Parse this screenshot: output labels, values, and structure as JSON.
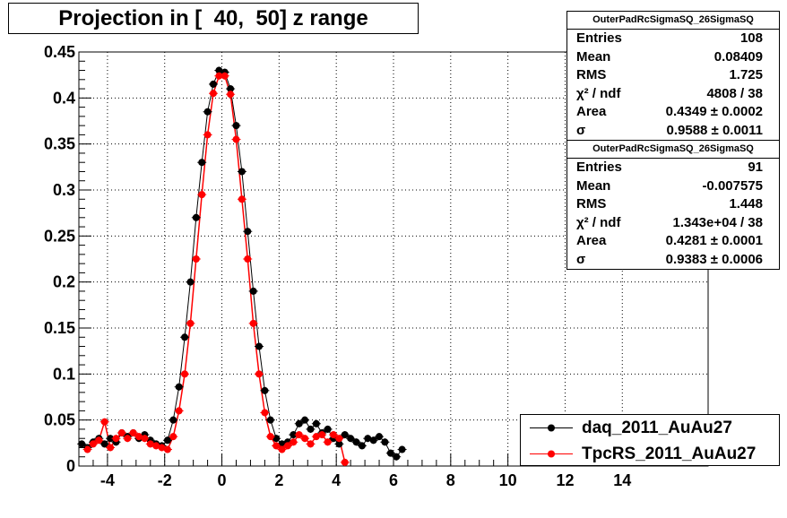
{
  "title": "Projection in [  40,  50] z range",
  "stats_boxes": [
    {
      "name": "OuterPadRcSigmaSQ_26SigmaSQ",
      "rows": [
        {
          "label": "Entries",
          "value": "108"
        },
        {
          "label": "Mean",
          "value": "0.08409"
        },
        {
          "label": "RMS",
          "value": "1.725"
        },
        {
          "label": "χ² / ndf",
          "value": "4808 / 38"
        },
        {
          "label": "Area",
          "value": "0.4349 ± 0.0002"
        },
        {
          "label": "σ",
          "value": "0.9588 ± 0.0011"
        }
      ]
    },
    {
      "name": "OuterPadRcSigmaSQ_26SigmaSQ",
      "rows": [
        {
          "label": "Entries",
          "value": "91"
        },
        {
          "label": "Mean",
          "value": "-0.007575"
        },
        {
          "label": "RMS",
          "value": "1.448"
        },
        {
          "label": "χ² / ndf",
          "value": "1.343e+04 / 38"
        },
        {
          "label": "Area",
          "value": "0.4281 ± 0.0001"
        },
        {
          "label": "σ",
          "value": "0.9383 ± 0.0006"
        }
      ]
    }
  ],
  "chart_data": {
    "type": "scatter",
    "title": "Projection in [  40,  50] z range",
    "xlim": [
      -5,
      17
    ],
    "ylim": [
      0,
      0.45
    ],
    "xticks": [
      -4,
      -2,
      0,
      2,
      4,
      6,
      8,
      10,
      12,
      14
    ],
    "yticks": [
      0,
      0.05,
      0.1,
      0.15,
      0.2,
      0.25,
      0.3,
      0.35,
      0.4,
      0.45
    ],
    "ytick_labels": [
      "0",
      "0.05",
      "0.1",
      "0.15",
      "0.2",
      "0.25",
      "0.3",
      "0.35",
      "0.4",
      "0.45"
    ],
    "grid": true,
    "legend": "bottom-right",
    "series": [
      {
        "name": "daq_2011_AuAu27",
        "color": "#000000",
        "x": [
          -4.9,
          -4.7,
          -4.5,
          -4.3,
          -4.1,
          -3.9,
          -3.7,
          -3.5,
          -3.3,
          -3.1,
          -2.9,
          -2.7,
          -2.5,
          -2.3,
          -2.1,
          -1.9,
          -1.7,
          -1.5,
          -1.3,
          -1.1,
          -0.9,
          -0.7,
          -0.5,
          -0.3,
          -0.1,
          0.1,
          0.3,
          0.5,
          0.7,
          0.9,
          1.1,
          1.3,
          1.5,
          1.7,
          1.9,
          2.1,
          2.3,
          2.5,
          2.7,
          2.9,
          3.1,
          3.3,
          3.5,
          3.7,
          3.9,
          4.1,
          4.3,
          4.5,
          4.7,
          4.9,
          5.1,
          5.3,
          5.5,
          5.7,
          5.9,
          6.1,
          6.3
        ],
        "y": [
          0.024,
          0.02,
          0.026,
          0.03,
          0.024,
          0.03,
          0.026,
          0.036,
          0.032,
          0.036,
          0.03,
          0.034,
          0.028,
          0.024,
          0.022,
          0.028,
          0.05,
          0.086,
          0.14,
          0.2,
          0.27,
          0.33,
          0.385,
          0.415,
          0.43,
          0.428,
          0.41,
          0.37,
          0.32,
          0.255,
          0.19,
          0.13,
          0.082,
          0.05,
          0.03,
          0.024,
          0.026,
          0.034,
          0.046,
          0.05,
          0.04,
          0.046,
          0.036,
          0.04,
          0.03,
          0.024,
          0.034,
          0.03,
          0.026,
          0.022,
          0.03,
          0.028,
          0.032,
          0.026,
          0.014,
          0.01,
          0.018
        ]
      },
      {
        "name": "TpcRS_2011_AuAu27",
        "color": "#ff0000",
        "x": [
          -4.7,
          -4.5,
          -4.3,
          -4.1,
          -3.9,
          -3.7,
          -3.5,
          -3.3,
          -3.1,
          -2.9,
          -2.7,
          -2.5,
          -2.3,
          -2.1,
          -1.9,
          -1.7,
          -1.5,
          -1.3,
          -1.1,
          -0.9,
          -0.7,
          -0.5,
          -0.3,
          -0.1,
          0.1,
          0.3,
          0.5,
          0.7,
          0.9,
          1.1,
          1.3,
          1.5,
          1.7,
          1.9,
          2.1,
          2.3,
          2.5,
          2.7,
          2.9,
          3.1,
          3.3,
          3.5,
          3.7,
          3.9,
          4.1,
          4.3
        ],
        "y": [
          0.018,
          0.024,
          0.028,
          0.048,
          0.02,
          0.03,
          0.036,
          0.03,
          0.036,
          0.032,
          0.03,
          0.024,
          0.022,
          0.02,
          0.018,
          0.032,
          0.06,
          0.1,
          0.155,
          0.225,
          0.295,
          0.36,
          0.405,
          0.424,
          0.424,
          0.404,
          0.355,
          0.29,
          0.225,
          0.155,
          0.1,
          0.058,
          0.032,
          0.022,
          0.018,
          0.022,
          0.026,
          0.034,
          0.03,
          0.024,
          0.032,
          0.034,
          0.026,
          0.034,
          0.03,
          0.004
        ]
      }
    ]
  }
}
